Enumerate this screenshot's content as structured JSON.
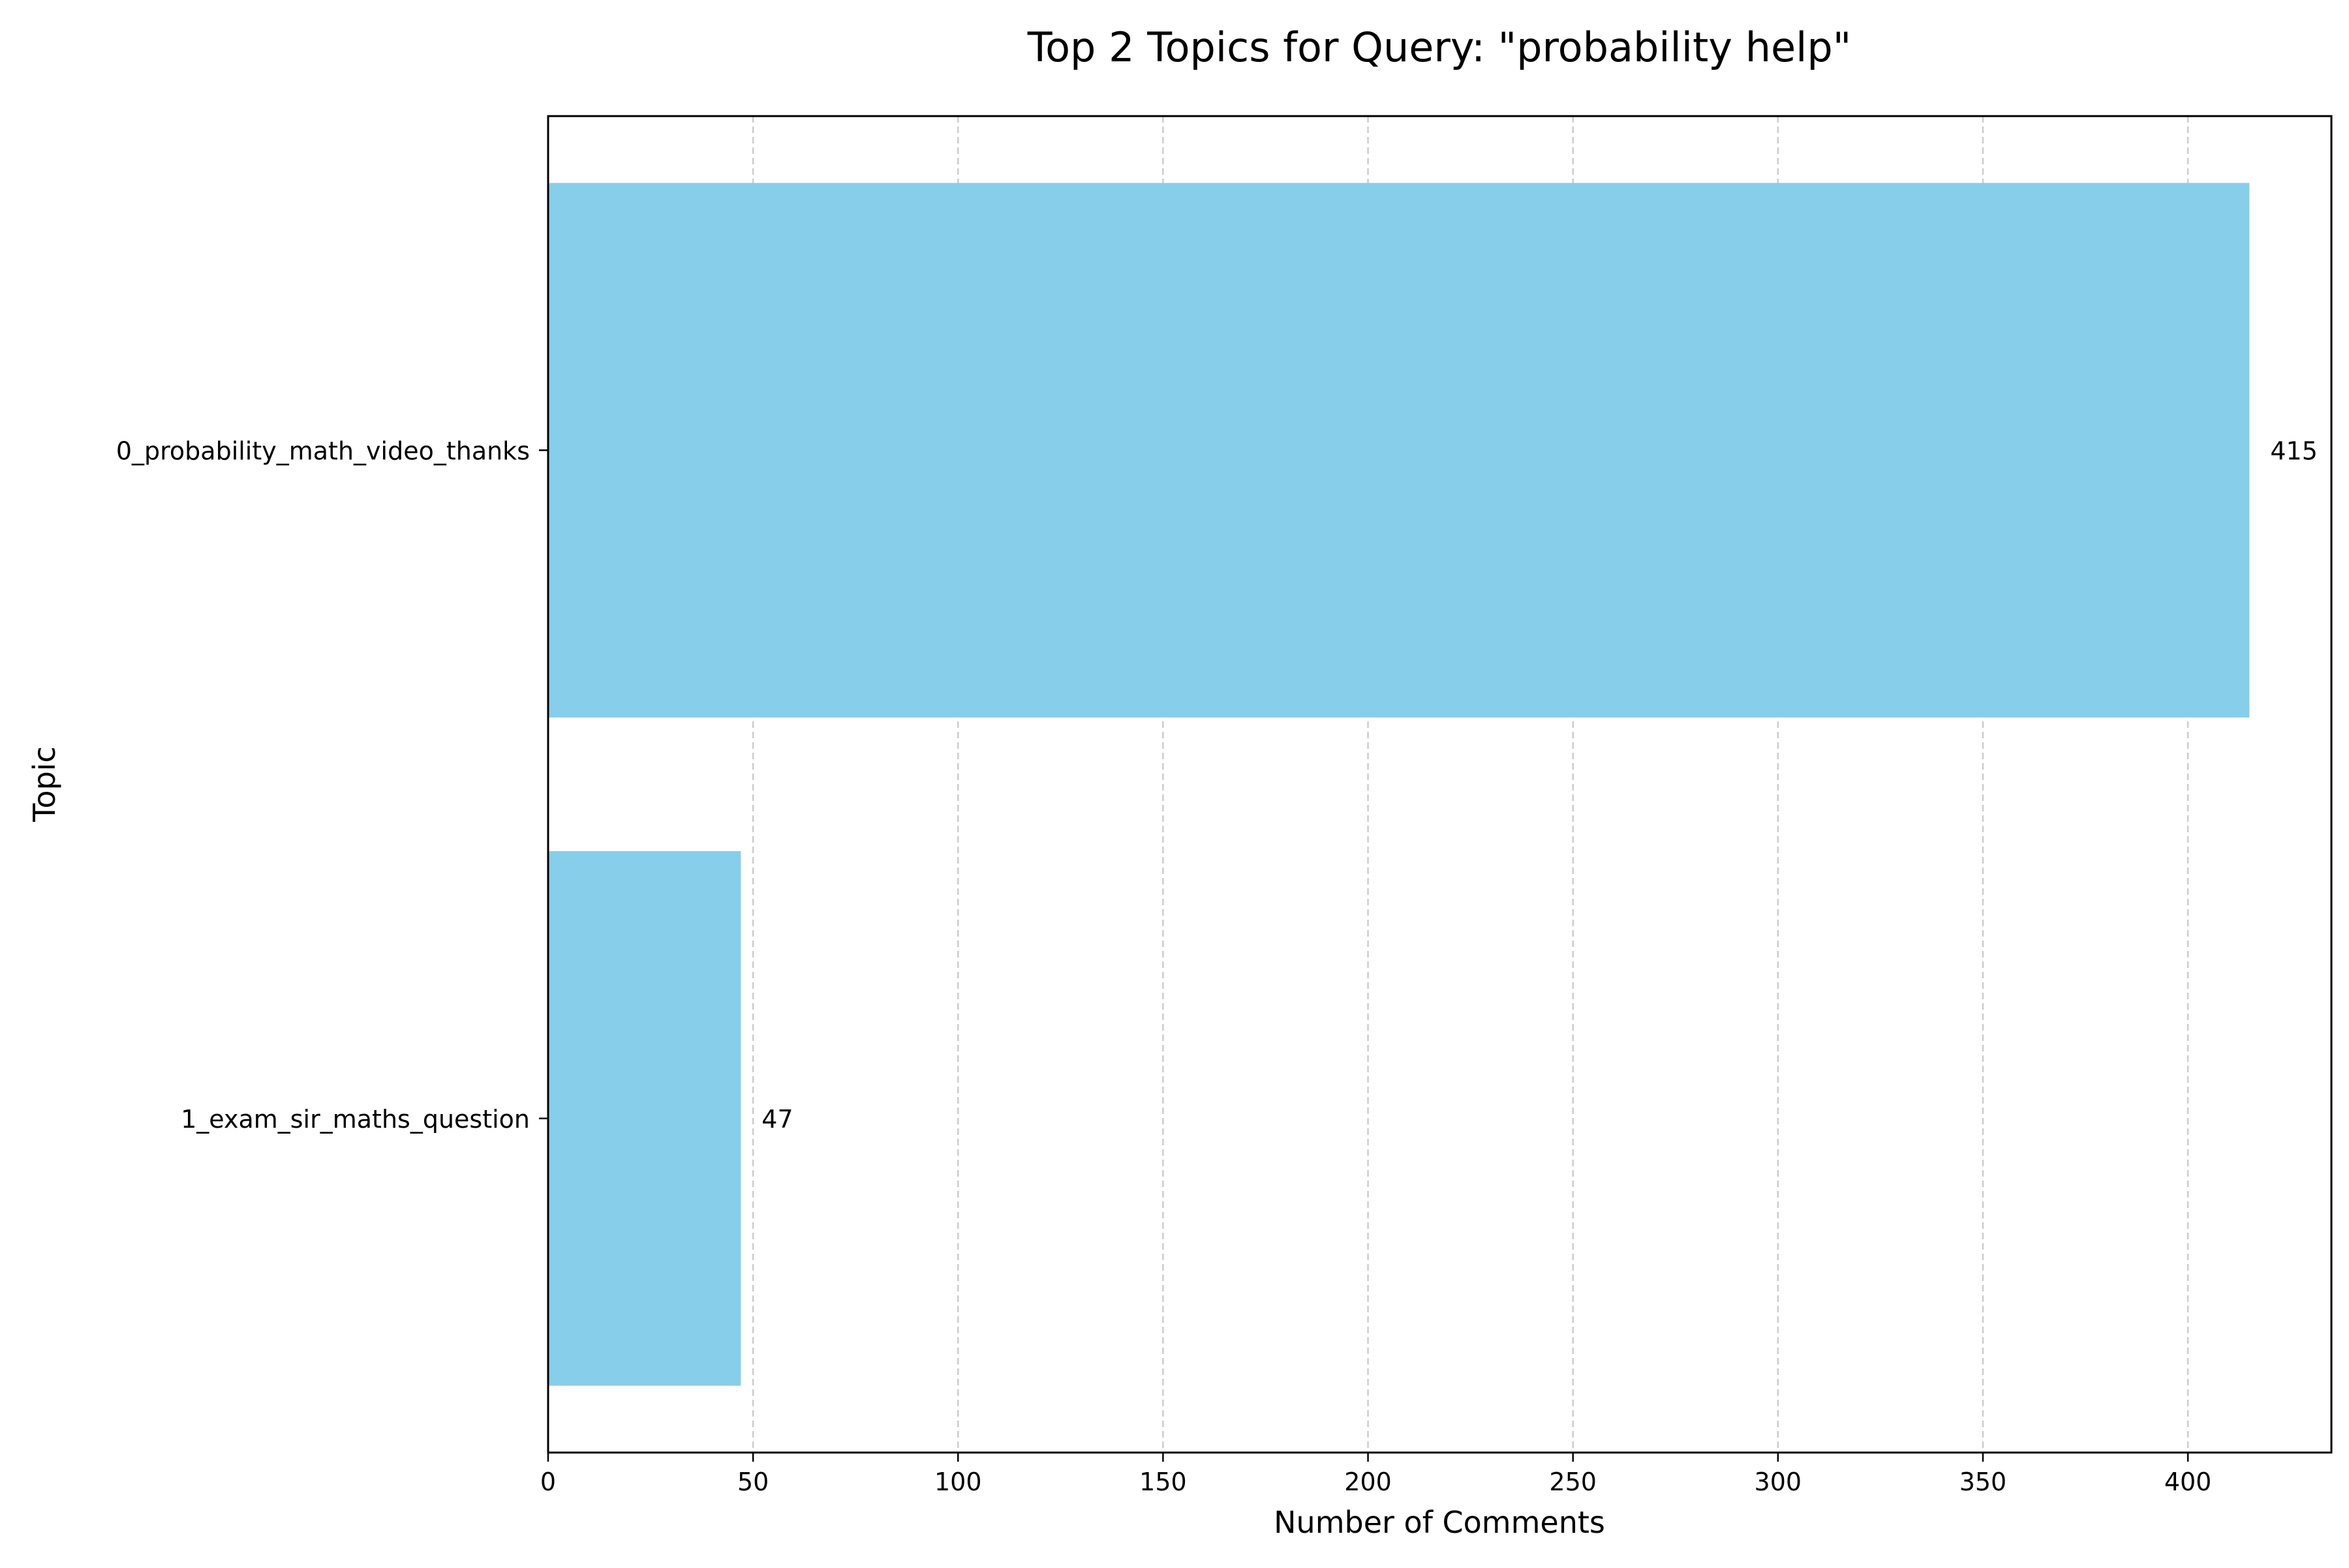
{
  "chart_data": {
    "type": "bar",
    "orientation": "horizontal",
    "title": "Top 2 Topics for Query: \"probability help\"",
    "xlabel": "Number of Comments",
    "ylabel": "Topic",
    "categories": [
      "0_probability_math_video_thanks",
      "1_exam_sir_maths_question"
    ],
    "values": [
      415,
      47
    ],
    "data_labels": [
      "415",
      "47"
    ],
    "xlim": [
      0,
      435
    ],
    "x_ticks": [
      0,
      50,
      100,
      150,
      200,
      250,
      300,
      350,
      400
    ],
    "x_tick_labels": [
      "0",
      "50",
      "100",
      "150",
      "200",
      "250",
      "300",
      "350",
      "400"
    ],
    "grid": {
      "x": true,
      "y": false,
      "style": "dashed"
    },
    "legend": "none",
    "colors": {
      "bar": "#87ceeb",
      "grid": "#cccccc",
      "axis": "#000000",
      "text": "#000000"
    }
  }
}
